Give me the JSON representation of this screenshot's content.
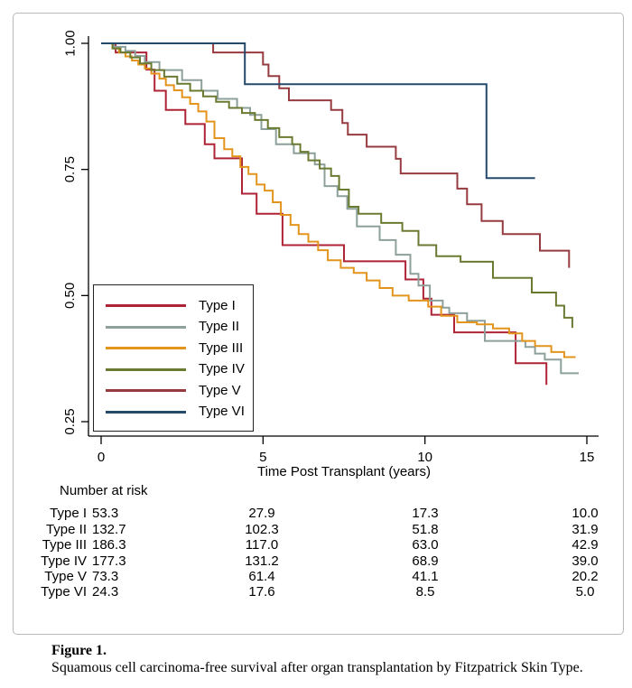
{
  "figure": {
    "caption_label": "Figure 1.",
    "caption_text": "Squamous cell carcinoma-free survival after organ transplantation by Fitzpatrick Skin Type."
  },
  "chart_data": {
    "type": "line",
    "subtype": "kaplan-meier-step-survival",
    "title": "",
    "xlabel": "Time Post Transplant (years)",
    "ylabel": "",
    "xlim": [
      0,
      15
    ],
    "ylim": [
      0.25,
      1.0
    ],
    "x_ticks": [
      0,
      5,
      10,
      15
    ],
    "x_tick_labels": [
      "0",
      "5",
      "10",
      "15"
    ],
    "y_ticks": [
      1.0,
      0.75,
      0.5,
      0.25
    ],
    "y_tick_labels": [
      "1.00",
      "0.75",
      "0.50",
      "0.25"
    ],
    "grid": false,
    "legend_position": "inside-lower-left",
    "axis_color": "#000000",
    "series": [
      {
        "name": "Type I",
        "color": "#ae2335",
        "points": [
          [
            0,
            1.0
          ],
          [
            0.45,
            0.982
          ],
          [
            1.4,
            0.948
          ],
          [
            1.65,
            0.906
          ],
          [
            2.0,
            0.868
          ],
          [
            2.6,
            0.84
          ],
          [
            3.2,
            0.8
          ],
          [
            3.5,
            0.772
          ],
          [
            4.35,
            0.702
          ],
          [
            4.8,
            0.662
          ],
          [
            5.6,
            0.6
          ],
          [
            7.5,
            0.568
          ],
          [
            9.4,
            0.532
          ],
          [
            9.95,
            0.494
          ],
          [
            10.2,
            0.462
          ],
          [
            10.9,
            0.427
          ],
          [
            12.8,
            0.366
          ],
          [
            13.75,
            0.323
          ]
        ]
      },
      {
        "name": "Type II",
        "color": "#8da09b",
        "points": [
          [
            0,
            1.0
          ],
          [
            0.4,
            0.993
          ],
          [
            0.75,
            0.985
          ],
          [
            1.05,
            0.975
          ],
          [
            1.35,
            0.963
          ],
          [
            1.8,
            0.947
          ],
          [
            2.5,
            0.927
          ],
          [
            3.1,
            0.906
          ],
          [
            3.6,
            0.89
          ],
          [
            4.2,
            0.872
          ],
          [
            4.6,
            0.858
          ],
          [
            4.95,
            0.83
          ],
          [
            5.4,
            0.8
          ],
          [
            5.95,
            0.782
          ],
          [
            6.6,
            0.76
          ],
          [
            6.9,
            0.717
          ],
          [
            7.3,
            0.697
          ],
          [
            7.6,
            0.672
          ],
          [
            7.9,
            0.637
          ],
          [
            8.6,
            0.61
          ],
          [
            9.1,
            0.581
          ],
          [
            9.55,
            0.543
          ],
          [
            9.8,
            0.52
          ],
          [
            10.15,
            0.49
          ],
          [
            10.55,
            0.476
          ],
          [
            10.75,
            0.465
          ],
          [
            11.3,
            0.45
          ],
          [
            11.85,
            0.41
          ],
          [
            13.1,
            0.398
          ],
          [
            13.4,
            0.385
          ],
          [
            13.7,
            0.373
          ],
          [
            14.2,
            0.346
          ],
          [
            14.75,
            0.346
          ]
        ]
      },
      {
        "name": "Type III",
        "color": "#e3941c",
        "points": [
          [
            0,
            1.0
          ],
          [
            0.35,
            0.99
          ],
          [
            0.55,
            0.982
          ],
          [
            0.75,
            0.974
          ],
          [
            0.95,
            0.966
          ],
          [
            1.15,
            0.958
          ],
          [
            1.35,
            0.95
          ],
          [
            1.55,
            0.94
          ],
          [
            1.8,
            0.93
          ],
          [
            2.0,
            0.917
          ],
          [
            2.25,
            0.907
          ],
          [
            2.5,
            0.893
          ],
          [
            2.75,
            0.88
          ],
          [
            3.0,
            0.865
          ],
          [
            3.25,
            0.845
          ],
          [
            3.5,
            0.812
          ],
          [
            3.8,
            0.79
          ],
          [
            4.05,
            0.776
          ],
          [
            4.3,
            0.755
          ],
          [
            4.55,
            0.741
          ],
          [
            4.8,
            0.72
          ],
          [
            5.05,
            0.708
          ],
          [
            5.3,
            0.685
          ],
          [
            5.55,
            0.66
          ],
          [
            5.85,
            0.64
          ],
          [
            6.1,
            0.622
          ],
          [
            6.4,
            0.607
          ],
          [
            6.7,
            0.59
          ],
          [
            7.0,
            0.57
          ],
          [
            7.4,
            0.555
          ],
          [
            7.8,
            0.545
          ],
          [
            8.2,
            0.53
          ],
          [
            8.6,
            0.515
          ],
          [
            9.0,
            0.5
          ],
          [
            9.5,
            0.49
          ],
          [
            10.1,
            0.478
          ],
          [
            10.5,
            0.46
          ],
          [
            11.0,
            0.447
          ],
          [
            11.6,
            0.443
          ],
          [
            12.1,
            0.435
          ],
          [
            12.6,
            0.425
          ],
          [
            13.0,
            0.41
          ],
          [
            13.4,
            0.4
          ],
          [
            13.9,
            0.388
          ],
          [
            14.3,
            0.378
          ],
          [
            14.65,
            0.378
          ]
        ]
      },
      {
        "name": "Type IV",
        "color": "#6a7b31",
        "points": [
          [
            0,
            1.0
          ],
          [
            0.35,
            0.99
          ],
          [
            0.6,
            0.982
          ],
          [
            0.9,
            0.972
          ],
          [
            1.2,
            0.96
          ],
          [
            1.55,
            0.947
          ],
          [
            1.95,
            0.934
          ],
          [
            2.35,
            0.92
          ],
          [
            2.75,
            0.906
          ],
          [
            3.15,
            0.895
          ],
          [
            3.55,
            0.884
          ],
          [
            3.95,
            0.872
          ],
          [
            4.35,
            0.862
          ],
          [
            4.75,
            0.848
          ],
          [
            5.15,
            0.832
          ],
          [
            5.5,
            0.814
          ],
          [
            5.9,
            0.8
          ],
          [
            6.15,
            0.785
          ],
          [
            6.4,
            0.768
          ],
          [
            6.75,
            0.752
          ],
          [
            7.1,
            0.737
          ],
          [
            7.35,
            0.71
          ],
          [
            7.65,
            0.676
          ],
          [
            7.95,
            0.662
          ],
          [
            8.65,
            0.644
          ],
          [
            9.3,
            0.628
          ],
          [
            9.8,
            0.6
          ],
          [
            10.35,
            0.578
          ],
          [
            11.1,
            0.567
          ],
          [
            12.1,
            0.535
          ],
          [
            13.3,
            0.506
          ],
          [
            14.05,
            0.48
          ],
          [
            14.3,
            0.456
          ],
          [
            14.55,
            0.436
          ]
        ]
      },
      {
        "name": "Type V",
        "color": "#963b40",
        "points": [
          [
            0,
            1.0
          ],
          [
            3.46,
            0.982
          ],
          [
            5.0,
            0.958
          ],
          [
            5.17,
            0.935
          ],
          [
            5.5,
            0.911
          ],
          [
            5.8,
            0.887
          ],
          [
            7.1,
            0.868
          ],
          [
            7.45,
            0.842
          ],
          [
            7.62,
            0.819
          ],
          [
            8.2,
            0.795
          ],
          [
            9.1,
            0.771
          ],
          [
            9.25,
            0.742
          ],
          [
            11.0,
            0.712
          ],
          [
            11.3,
            0.681
          ],
          [
            11.75,
            0.648
          ],
          [
            12.4,
            0.622
          ],
          [
            13.55,
            0.589
          ],
          [
            14.45,
            0.555
          ]
        ]
      },
      {
        "name": "Type VI",
        "color": "#254a6b",
        "points": [
          [
            0,
            1.0
          ],
          [
            4.44,
            0.919
          ],
          [
            11.9,
            0.733
          ],
          [
            13.4,
            0.733
          ]
        ]
      }
    ],
    "number_at_risk": {
      "header": "Number at risk",
      "times": [
        0,
        5,
        10,
        15
      ],
      "rows": [
        {
          "label": "Type I",
          "values": [
            "53.3",
            "27.9",
            "17.3",
            "10.0"
          ]
        },
        {
          "label": "Type II",
          "values": [
            "132.7",
            "102.3",
            "51.8",
            "31.9"
          ]
        },
        {
          "label": "Type III",
          "values": [
            "186.3",
            "117.0",
            "63.0",
            "42.9"
          ]
        },
        {
          "label": "Type IV",
          "values": [
            "177.3",
            "131.2",
            "68.9",
            "39.0"
          ]
        },
        {
          "label": "Type V",
          "values": [
            "73.3",
            "61.4",
            "41.1",
            "20.2"
          ]
        },
        {
          "label": "Type VI",
          "values": [
            "24.3",
            "17.6",
            "8.5",
            "5.0"
          ]
        }
      ]
    }
  }
}
